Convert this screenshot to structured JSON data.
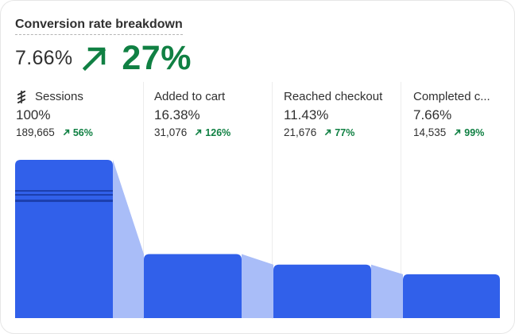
{
  "card": {
    "title": "Conversion rate breakdown",
    "overall_rate": "7.66%",
    "overall_change": "27%",
    "overall_change_icon": "arrow-up-right-icon"
  },
  "colors": {
    "bar": "#3160ea",
    "bar_dark": "#1c3fae",
    "connector": "#a9bdf8",
    "positive": "#108043"
  },
  "steps": [
    {
      "label": "Sessions",
      "icon": "sessions-icon",
      "percent": "100%",
      "count": "189,665",
      "change": "56%",
      "value": 100
    },
    {
      "label": "Added to cart",
      "percent": "16.38%",
      "count": "31,076",
      "change": "126%",
      "value": 16.38
    },
    {
      "label": "Reached checkout",
      "percent": "11.43%",
      "count": "21,676",
      "change": "77%",
      "value": 11.43
    },
    {
      "label": "Completed c...",
      "percent": "7.66%",
      "count": "14,535",
      "change": "99%",
      "value": 7.66
    }
  ]
}
